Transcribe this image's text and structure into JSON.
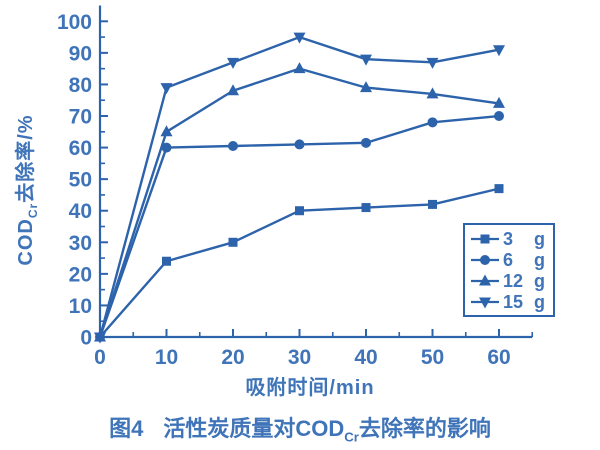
{
  "colors": {
    "accent": "#2d63ab",
    "text": "#3f74b8"
  },
  "axis_labels": {
    "y_main": "COD",
    "y_sub": "Cr",
    "y_rest": "去除率/%",
    "x": "吸附时间/min"
  },
  "caption": {
    "fig": "图4",
    "pre": "活性炭质量对COD",
    "sub": "Cr",
    "post": "去除率的影响"
  },
  "chart_data": {
    "type": "line",
    "title": "图4 活性炭质量对COD_Cr去除率的影响",
    "xlabel": "吸附时间/min",
    "ylabel": "COD_Cr去除率/%",
    "x": [
      0,
      10,
      20,
      30,
      40,
      50,
      60
    ],
    "series": [
      {
        "name": "3 g",
        "qty": "3",
        "unit": "g",
        "marker": "square",
        "values": [
          0,
          24,
          30,
          40,
          41,
          42,
          47
        ]
      },
      {
        "name": "6 g",
        "qty": "6",
        "unit": "g",
        "marker": "circle",
        "values": [
          0,
          60,
          60.5,
          61,
          61.5,
          68,
          70
        ]
      },
      {
        "name": "12 g",
        "qty": "12",
        "unit": "g",
        "marker": "triangle-up",
        "values": [
          0,
          65,
          78,
          85,
          79,
          77,
          74
        ]
      },
      {
        "name": "15 g",
        "qty": "15",
        "unit": "g",
        "marker": "triangle-down",
        "values": [
          0,
          79,
          87,
          95,
          88,
          87,
          91
        ]
      }
    ],
    "xlim": [
      0,
      65
    ],
    "ylim": [
      0,
      105
    ],
    "x_major_ticks": [
      0,
      10,
      20,
      30,
      40,
      50,
      60
    ],
    "y_major_ticks": [
      0,
      10,
      20,
      30,
      40,
      50,
      60,
      70,
      80,
      90,
      100
    ],
    "minor_tick_step": 5,
    "grid": false,
    "legend_position": "lower-right"
  }
}
